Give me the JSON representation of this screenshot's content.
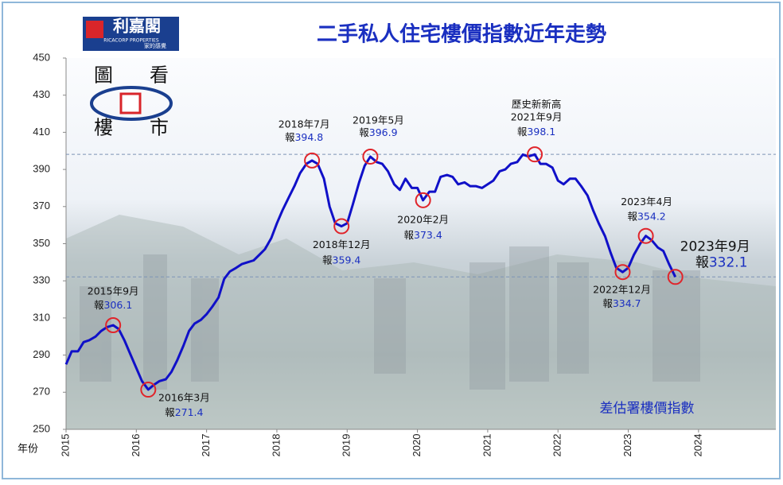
{
  "chart_data": {
    "type": "line",
    "title": "二手私人住宅樓價指數近年走勢",
    "source": "差估署樓價指數",
    "x_label": "年份",
    "brand": {
      "name": "利嘉閣",
      "english": "RICACORP PROPERTIES",
      "slogan": "家的感覺"
    },
    "badge": [
      "圖",
      "看",
      "樓",
      "市"
    ],
    "xlim": [
      2015,
      2025.1
    ],
    "xticks": [
      2015,
      2016,
      2017,
      2018,
      2019,
      2020,
      2021,
      2022,
      2023,
      2024
    ],
    "ylim": [
      250,
      450
    ],
    "yticks": [
      250,
      270,
      290,
      310,
      330,
      350,
      370,
      390,
      410,
      430,
      450
    ],
    "x": [
      2015.0,
      2015.08,
      2015.17,
      2015.25,
      2015.33,
      2015.42,
      2015.5,
      2015.58,
      2015.67,
      2015.75,
      2015.83,
      2015.92,
      2016.0,
      2016.08,
      2016.17,
      2016.25,
      2016.33,
      2016.42,
      2016.5,
      2016.58,
      2016.67,
      2016.75,
      2016.83,
      2016.92,
      2017.0,
      2017.08,
      2017.17,
      2017.25,
      2017.33,
      2017.42,
      2017.5,
      2017.58,
      2017.67,
      2017.75,
      2017.83,
      2017.92,
      2018.0,
      2018.08,
      2018.17,
      2018.25,
      2018.33,
      2018.42,
      2018.5,
      2018.58,
      2018.67,
      2018.75,
      2018.83,
      2018.92,
      2019.0,
      2019.08,
      2019.17,
      2019.25,
      2019.33,
      2019.42,
      2019.5,
      2019.58,
      2019.67,
      2019.75,
      2019.83,
      2019.92,
      2020.0,
      2020.08,
      2020.17,
      2020.25,
      2020.33,
      2020.42,
      2020.5,
      2020.58,
      2020.67,
      2020.75,
      2020.83,
      2020.92,
      2021.0,
      2021.08,
      2021.17,
      2021.25,
      2021.33,
      2021.42,
      2021.5,
      2021.58,
      2021.67,
      2021.75,
      2021.83,
      2021.92,
      2022.0,
      2022.08,
      2022.17,
      2022.25,
      2022.33,
      2022.42,
      2022.5,
      2022.58,
      2022.67,
      2022.75,
      2022.83,
      2022.92,
      2023.0,
      2023.08,
      2023.17,
      2023.25,
      2023.33,
      2023.42,
      2023.5,
      2023.58,
      2023.67
    ],
    "series": [
      {
        "name": "差估署樓價指數",
        "color": "#1010c8",
        "values": [
          285,
          292,
          292,
          297,
          298,
          300,
          303,
          305,
          306.1,
          304,
          298,
          290,
          283,
          276,
          271.4,
          274,
          276,
          277,
          281,
          287,
          295,
          303,
          307,
          309,
          312,
          316,
          321,
          331,
          335,
          337,
          339,
          340,
          341,
          344,
          347,
          353,
          361,
          368,
          375,
          381,
          388,
          393,
          394.8,
          393,
          385,
          370,
          361,
          359.4,
          361,
          371,
          383,
          392,
          396.9,
          394,
          393,
          389,
          382,
          379,
          385,
          380,
          380,
          373.4,
          378,
          378,
          386,
          387,
          386,
          382,
          383,
          381,
          381,
          380,
          382,
          384,
          389,
          390,
          393,
          394,
          398,
          397,
          398.1,
          393,
          393,
          391,
          384,
          382,
          385,
          385,
          381,
          376,
          368,
          361,
          354,
          345,
          337,
          334.7,
          337,
          344,
          350,
          354.2,
          352,
          348,
          346,
          339,
          332.1
        ]
      }
    ],
    "annotations": [
      {
        "x": 2015.67,
        "label": "2015年9月",
        "prefix": "報",
        "value": 306.1
      },
      {
        "x": 2016.17,
        "label": "2016年3月",
        "prefix": "報",
        "value": 271.4
      },
      {
        "x": 2018.5,
        "label": "2018年7月",
        "prefix": "報",
        "value": 394.8
      },
      {
        "x": 2018.92,
        "label": "2018年12月",
        "prefix": "報",
        "value": 359.4
      },
      {
        "x": 2019.33,
        "label": "2019年5月",
        "prefix": "報",
        "value": 396.9
      },
      {
        "x": 2020.08,
        "label": "2020年2月",
        "prefix": "報",
        "value": 373.4
      },
      {
        "x": 2021.67,
        "note": "歷史新新高",
        "label": "2021年9月",
        "prefix": "報",
        "value": 398.1
      },
      {
        "x": 2022.92,
        "label": "2022年12月",
        "prefix": "報",
        "value": 334.7
      },
      {
        "x": 2023.25,
        "label": "2023年4月",
        "prefix": "報",
        "value": 354.2
      },
      {
        "x": 2023.67,
        "label": "2023年9月",
        "prefix": "報",
        "value": 332.1
      }
    ],
    "grid": false
  }
}
